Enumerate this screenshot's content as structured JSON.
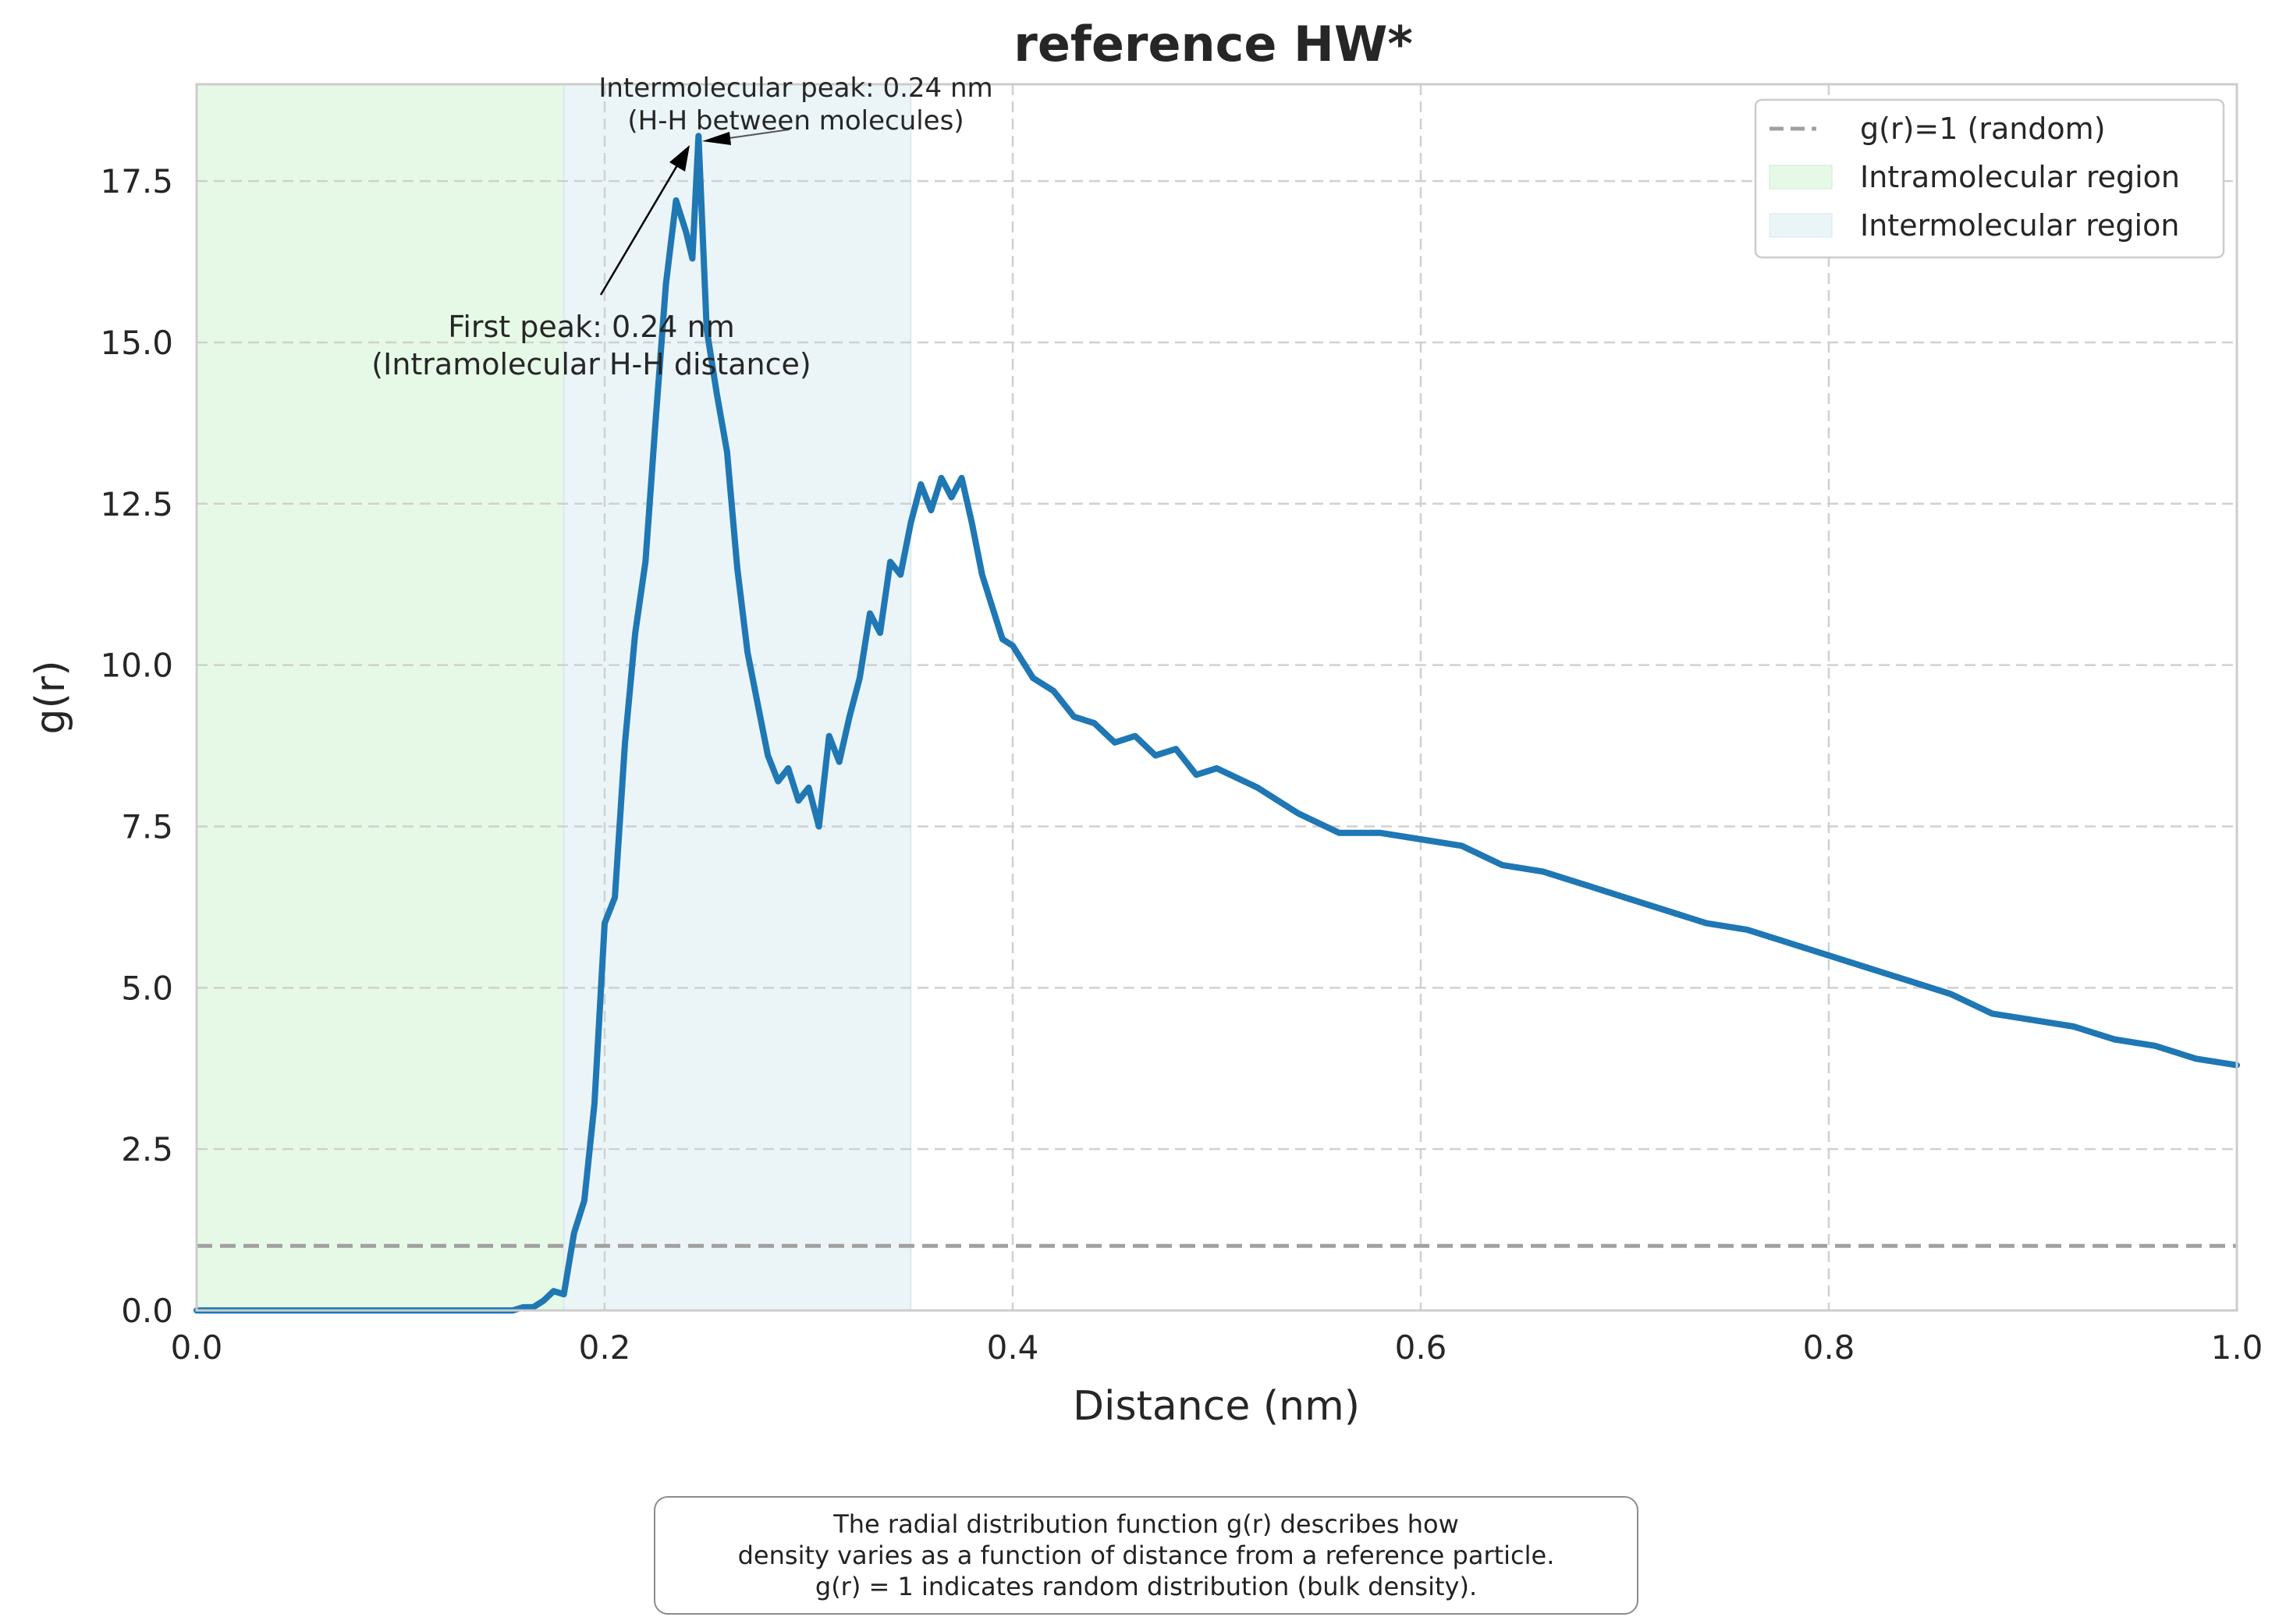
{
  "chart_data": {
    "type": "line",
    "title": "reference HW*",
    "xlabel": "Distance (nm)",
    "ylabel": "g(r)",
    "xlim": [
      0.0,
      1.0
    ],
    "ylim": [
      0.0,
      19.0
    ],
    "x_ticks": [
      0.0,
      0.2,
      0.4,
      0.6,
      0.8,
      1.0
    ],
    "x_tick_labels": [
      "0.0",
      "0.2",
      "0.4",
      "0.6",
      "0.8",
      "1.0"
    ],
    "y_ticks": [
      0.0,
      2.5,
      5.0,
      7.5,
      10.0,
      12.5,
      15.0,
      17.5
    ],
    "y_tick_labels": [
      "0.0",
      "2.5",
      "5.0",
      "7.5",
      "10.0",
      "12.5",
      "15.0",
      "17.5"
    ],
    "grid": true,
    "legend_position": "top-right",
    "legend": [
      {
        "label": "g(r)=1 (random)",
        "kind": "dashed-line",
        "color": "#999999"
      },
      {
        "label": "Intramolecular region",
        "kind": "patch",
        "color": "#e6f9e6"
      },
      {
        "label": "Intermolecular region",
        "kind": "patch",
        "color": "#ebf5f8"
      }
    ],
    "regions": [
      {
        "name": "Intramolecular region",
        "x_start": 0.0,
        "x_end": 0.18,
        "color": "#e6f9e6"
      },
      {
        "name": "Intermolecular region",
        "x_start": 0.18,
        "x_end": 0.35,
        "color": "#ebf5f8"
      }
    ],
    "reference_line": {
      "y": 1.0,
      "label": "g(r)=1 (random)",
      "color": "#999999"
    },
    "series": [
      {
        "color": "#1f77b4",
        "x": [
          0.0,
          0.02,
          0.04,
          0.06,
          0.08,
          0.1,
          0.12,
          0.14,
          0.155,
          0.16,
          0.165,
          0.17,
          0.175,
          0.18,
          0.185,
          0.19,
          0.195,
          0.2,
          0.205,
          0.21,
          0.215,
          0.22,
          0.225,
          0.23,
          0.235,
          0.24,
          0.243,
          0.246,
          0.25,
          0.255,
          0.26,
          0.265,
          0.27,
          0.275,
          0.28,
          0.285,
          0.29,
          0.295,
          0.3,
          0.305,
          0.31,
          0.315,
          0.32,
          0.325,
          0.33,
          0.335,
          0.34,
          0.345,
          0.35,
          0.355,
          0.36,
          0.365,
          0.37,
          0.375,
          0.38,
          0.385,
          0.39,
          0.395,
          0.4,
          0.41,
          0.42,
          0.43,
          0.44,
          0.45,
          0.46,
          0.47,
          0.48,
          0.49,
          0.5,
          0.52,
          0.54,
          0.56,
          0.58,
          0.6,
          0.62,
          0.64,
          0.66,
          0.68,
          0.7,
          0.72,
          0.74,
          0.76,
          0.78,
          0.8,
          0.82,
          0.84,
          0.86,
          0.88,
          0.9,
          0.92,
          0.94,
          0.96,
          0.98,
          1.0
        ],
        "y": [
          0.0,
          0.0,
          0.0,
          0.0,
          0.0,
          0.0,
          0.0,
          0.0,
          0.0,
          0.05,
          0.05,
          0.15,
          0.3,
          0.25,
          1.2,
          1.7,
          3.2,
          6.0,
          6.4,
          8.8,
          10.5,
          11.6,
          13.8,
          15.9,
          17.2,
          16.7,
          16.3,
          18.2,
          15.2,
          14.2,
          13.3,
          11.5,
          10.2,
          9.4,
          8.6,
          8.2,
          8.4,
          7.9,
          8.1,
          7.5,
          8.9,
          8.5,
          9.2,
          9.8,
          10.8,
          10.5,
          11.6,
          11.4,
          12.2,
          12.8,
          12.4,
          12.9,
          12.6,
          12.9,
          12.2,
          11.4,
          10.9,
          10.4,
          10.3,
          9.8,
          9.6,
          9.2,
          9.1,
          8.8,
          8.9,
          8.6,
          8.7,
          8.3,
          8.4,
          8.1,
          7.7,
          7.4,
          7.4,
          7.3,
          7.2,
          6.9,
          6.8,
          6.6,
          6.4,
          6.2,
          6.0,
          5.9,
          5.7,
          5.5,
          5.3,
          5.1,
          4.9,
          4.6,
          4.5,
          4.4,
          4.2,
          4.1,
          3.9,
          3.8
        ]
      }
    ],
    "annotations": [
      {
        "text_lines": [
          "First peak: 0.24 nm",
          "(Intramolecular H-H distance)"
        ],
        "target": {
          "x": 0.24,
          "y": 18.2
        }
      },
      {
        "text_lines": [
          "Intermolecular peak: 0.24 nm",
          "(H-H between molecules)"
        ],
        "target": {
          "x": 0.24,
          "y": 18.2
        }
      }
    ]
  },
  "caption": {
    "lines": [
      "The radial distribution function g(r) describes how",
      "density varies as a function of distance from a reference particle.",
      "g(r) = 1 indicates random distribution (bulk density)."
    ]
  }
}
